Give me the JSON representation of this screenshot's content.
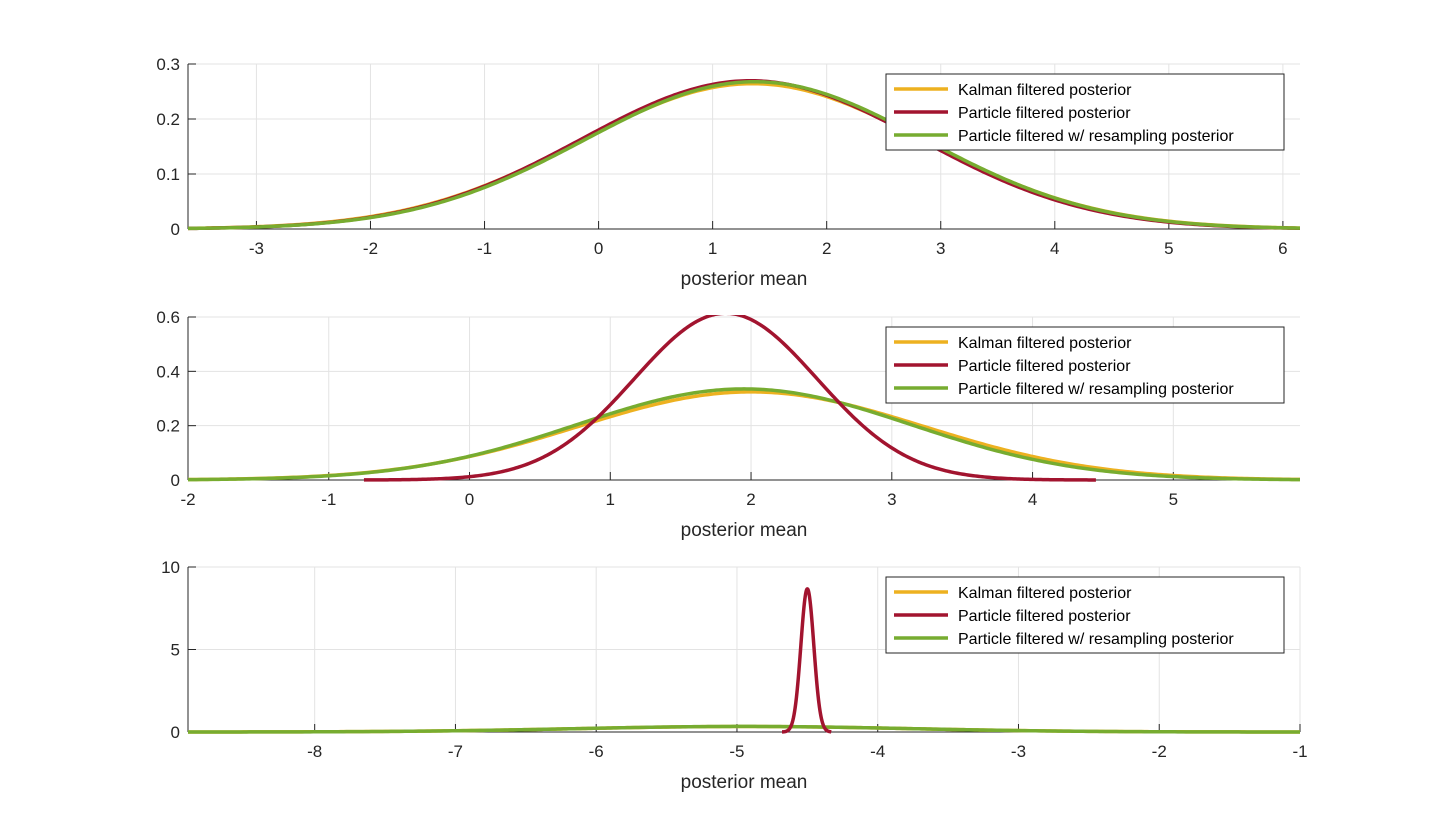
{
  "chart_data": [
    {
      "type": "line",
      "xlabel": "posterior mean",
      "ylabel": "",
      "xlim": [
        -3.6,
        6.15
      ],
      "ylim": [
        0,
        0.3
      ],
      "xticks": [
        -3,
        -2,
        -1,
        0,
        1,
        2,
        3,
        4,
        5,
        6
      ],
      "yticks": [
        0,
        0.1,
        0.2,
        0.3
      ],
      "xtick_labels": [
        "-3",
        "-2",
        "-1",
        "0",
        "1",
        "2",
        "3",
        "4",
        "5",
        "6"
      ],
      "ytick_labels": [
        "0",
        "0.1",
        "0.2",
        "0.3"
      ],
      "grid": true,
      "legend_position": "top-right",
      "series": [
        {
          "name": "Kalman filtered posterior",
          "color": "#EDB120",
          "mean": 1.35,
          "sd": 1.51,
          "range": [
            -3.6,
            6.15
          ]
        },
        {
          "name": "Particle filtered posterior",
          "color": "#A2142F",
          "mean": 1.33,
          "sd": 1.48,
          "range": [
            -3.6,
            6.15
          ]
        },
        {
          "name": "Particle filtered w/ resampling posterior",
          "color": "#77AC30",
          "mean": 1.37,
          "sd": 1.49,
          "range": [
            -3.6,
            6.15
          ]
        }
      ]
    },
    {
      "type": "line",
      "xlabel": "posterior mean",
      "ylabel": "",
      "xlim": [
        -2,
        5.9
      ],
      "ylim": [
        0,
        0.6
      ],
      "xticks": [
        -2,
        -1,
        0,
        1,
        2,
        3,
        4,
        5
      ],
      "yticks": [
        0,
        0.2,
        0.4,
        0.6
      ],
      "xtick_labels": [
        "-2",
        "-1",
        "0",
        "1",
        "2",
        "3",
        "4",
        "5"
      ],
      "ytick_labels": [
        "0",
        "0.2",
        "0.4",
        "0.6"
      ],
      "grid": true,
      "legend_position": "top-right",
      "series": [
        {
          "name": "Kalman filtered posterior",
          "color": "#EDB120",
          "mean": 2.0,
          "sd": 1.23,
          "range": [
            -2,
            5.9
          ]
        },
        {
          "name": "Particle filtered posterior",
          "color": "#A2142F",
          "mean": 1.82,
          "sd": 0.65,
          "range": [
            -0.75,
            4.45
          ]
        },
        {
          "name": "Particle filtered w/ resampling posterior",
          "color": "#77AC30",
          "mean": 1.95,
          "sd": 1.19,
          "range": [
            -2,
            5.9
          ]
        }
      ]
    },
    {
      "type": "line",
      "xlabel": "posterior mean",
      "ylabel": "",
      "xlim": [
        -8.9,
        -1
      ],
      "ylim": [
        0,
        10
      ],
      "xticks": [
        -8,
        -7,
        -6,
        -5,
        -4,
        -3,
        -2,
        -1
      ],
      "yticks": [
        0,
        5,
        10
      ],
      "xtick_labels": [
        "-8",
        "-7",
        "-6",
        "-5",
        "-4",
        "-3",
        "-2",
        "-1"
      ],
      "ytick_labels": [
        "0",
        "5",
        "10"
      ],
      "grid": true,
      "legend_position": "top-right",
      "series": [
        {
          "name": "Kalman filtered posterior",
          "color": "#EDB120",
          "mean": -4.95,
          "sd": 1.2,
          "range": [
            -8.9,
            -1
          ]
        },
        {
          "name": "Particle filtered posterior",
          "color": "#A2142F",
          "mean": -4.5,
          "sd": 0.046,
          "range": [
            -4.68,
            -4.33
          ]
        },
        {
          "name": "Particle filtered w/ resampling posterior",
          "color": "#77AC30",
          "mean": -4.95,
          "sd": 1.18,
          "range": [
            -8.9,
            -1
          ]
        }
      ]
    }
  ]
}
